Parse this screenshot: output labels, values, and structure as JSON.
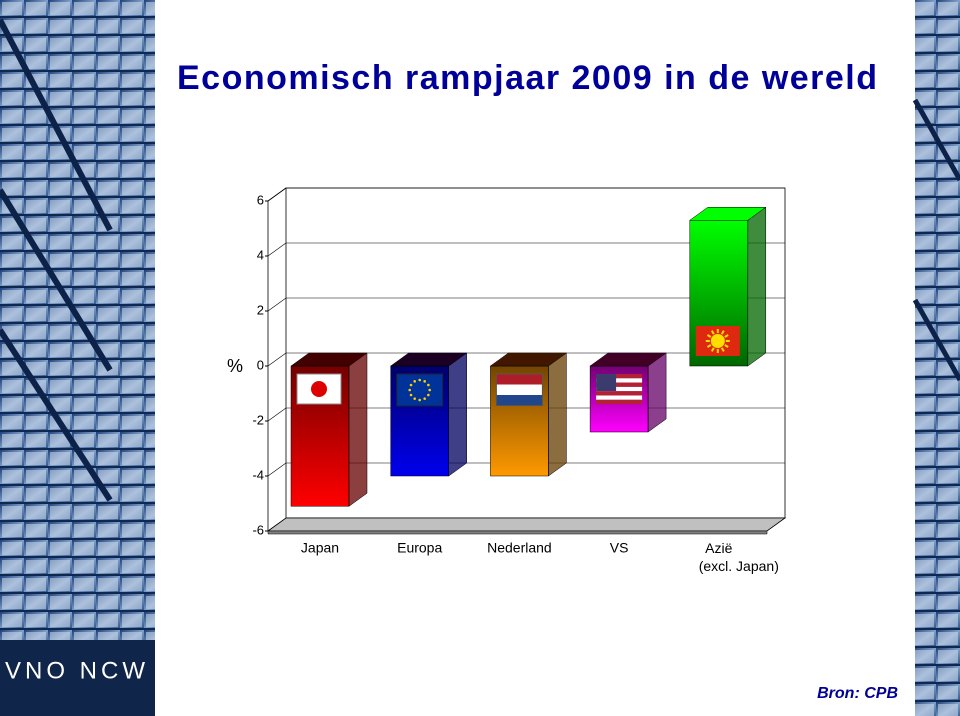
{
  "chart_data": {
    "type": "bar3d",
    "title": "Economisch rampjaar 2009 in de wereld",
    "y_label": "%",
    "categories": [
      "Japan",
      "Europa",
      "Nederland",
      "VS",
      "Azië\n(excl. Japan)"
    ],
    "values": [
      -5.1,
      -4.0,
      -4.0,
      -2.4,
      5.3
    ],
    "colors": [
      "#ff0000",
      "#0000ee",
      "#ff9900",
      "#ff00ff",
      "#00ff00"
    ],
    "ylim": [
      -6,
      6
    ],
    "yticks": [
      -6,
      -4,
      -2,
      0,
      2,
      4,
      6
    ],
    "grid": true,
    "source": "Bron: CPB",
    "logo": "VNO NCW"
  }
}
